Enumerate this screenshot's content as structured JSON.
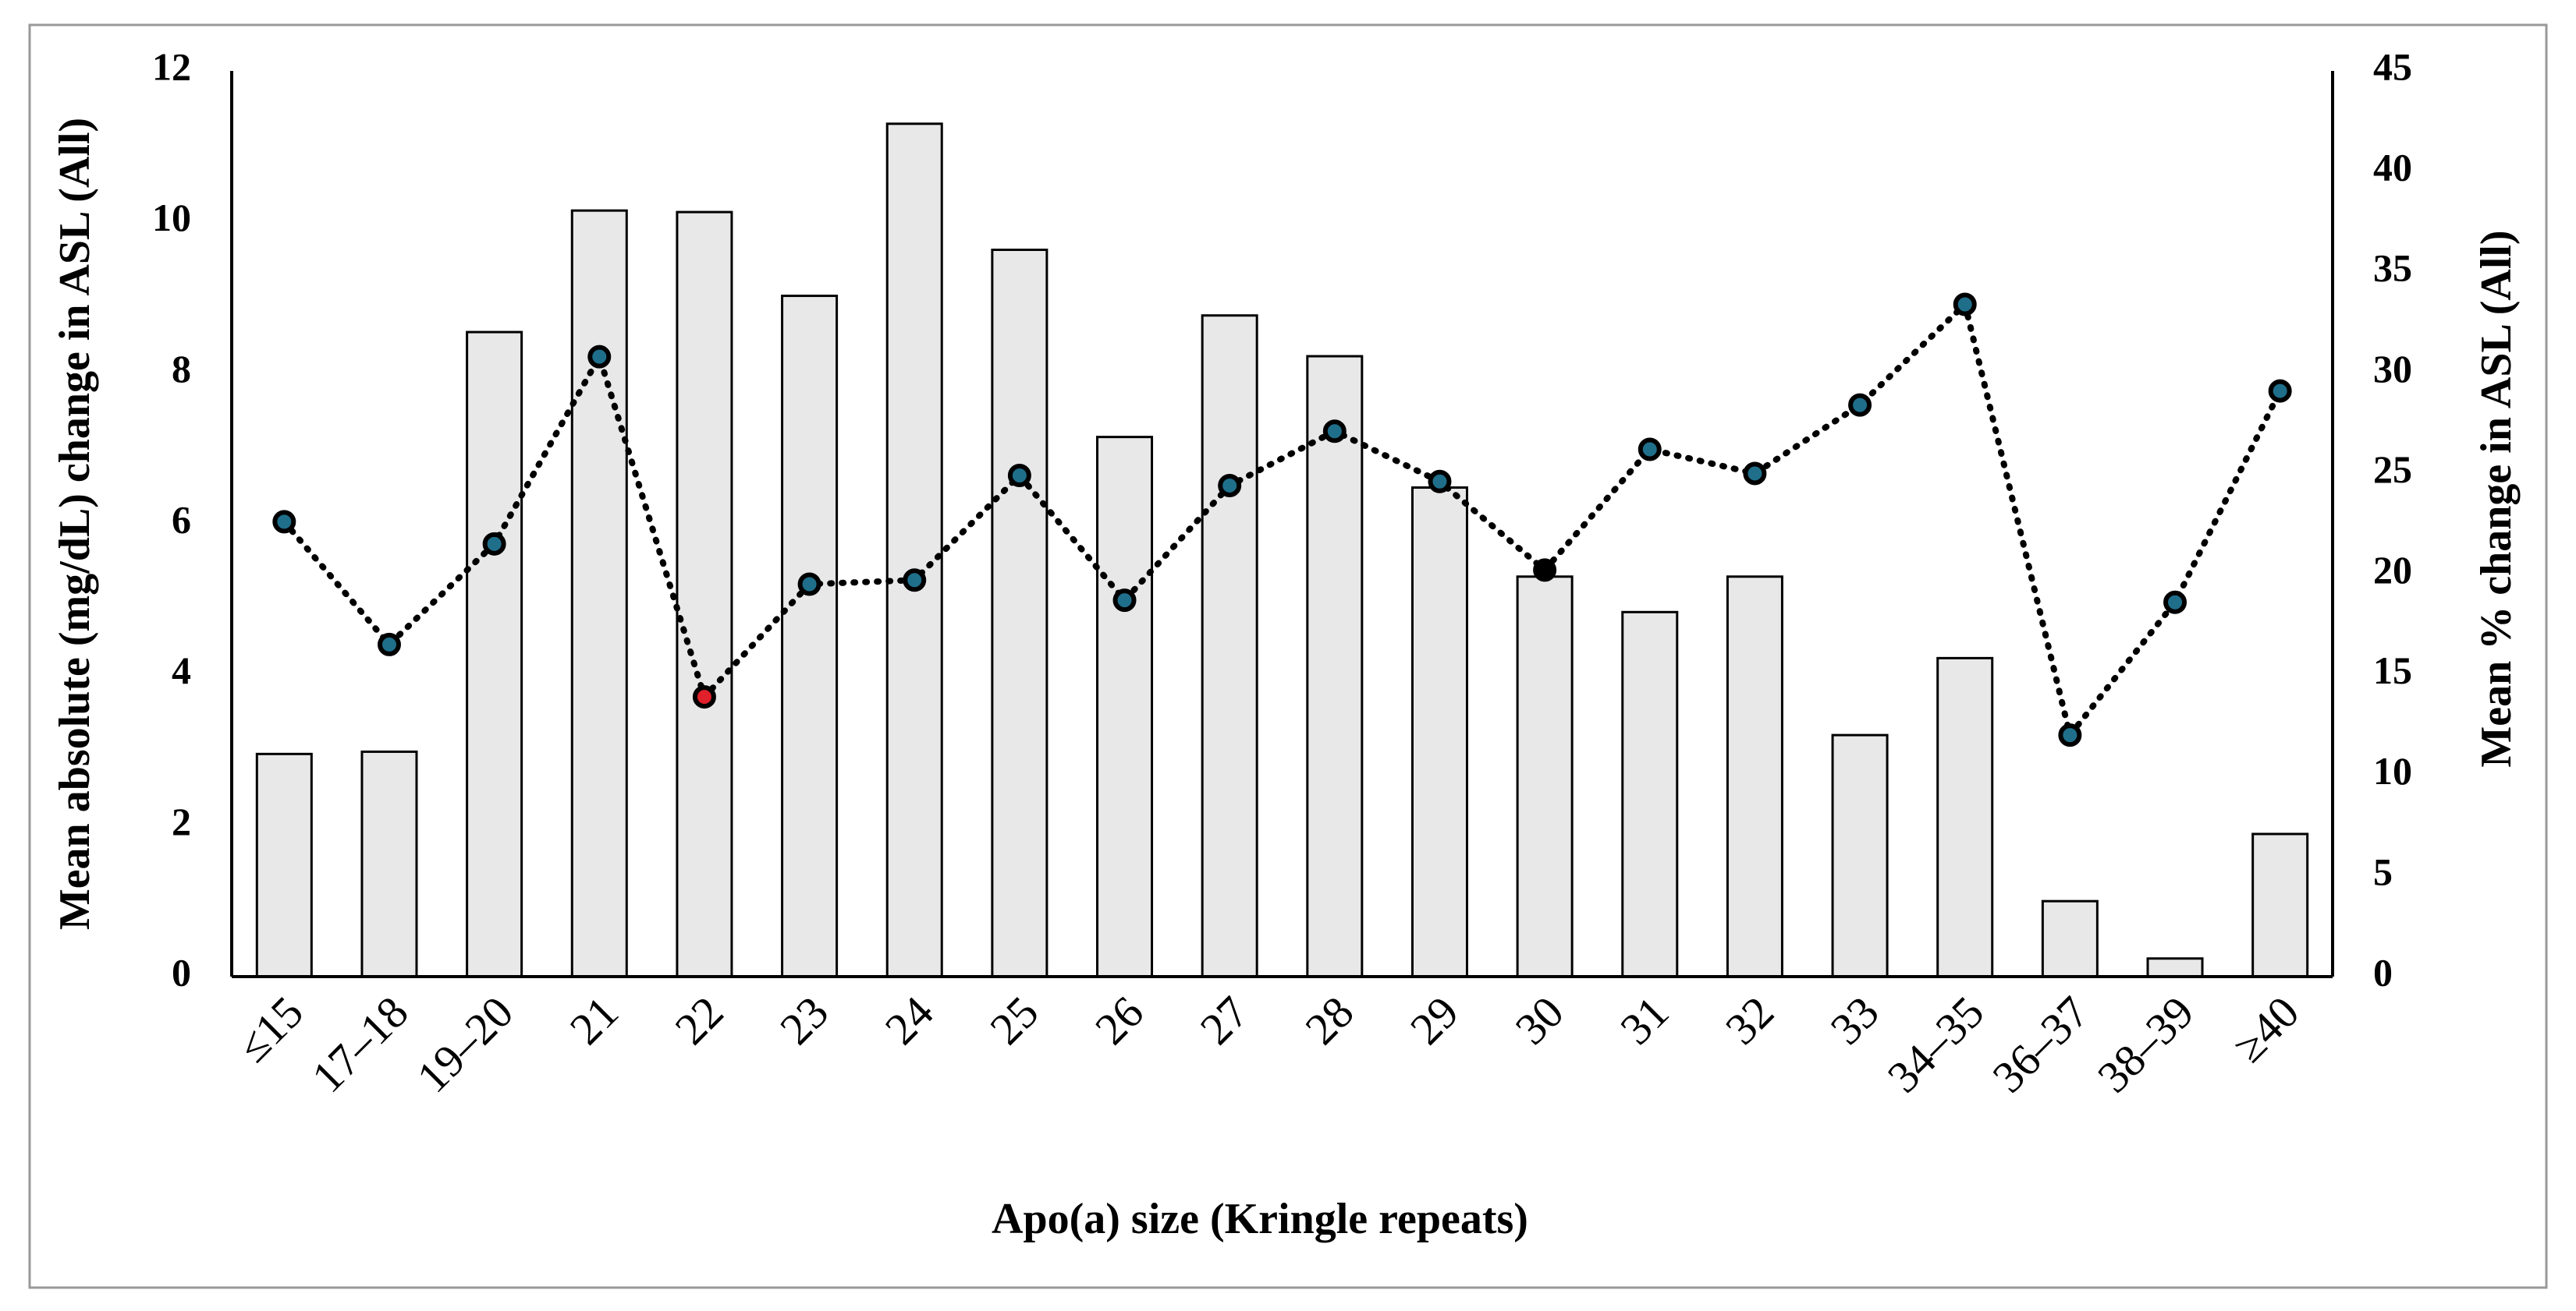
{
  "chart_data": {
    "type": "bar-line",
    "x_label": "Apo(a) size (Kringle repeats)",
    "y_label": "Mean absolute (mg/dL) change in ASL (All)",
    "y2_label": "Mean % change in ASL (All)",
    "categories": [
      "≤15",
      "17–18",
      "19–20",
      "21",
      "22",
      "23",
      "24",
      "25",
      "26",
      "27",
      "28",
      "29",
      "30",
      "31",
      "32",
      "33",
      "34–35",
      "36–37",
      "38–39",
      "≥40"
    ],
    "series": [
      {
        "type": "bar",
        "axis": "y",
        "color": "#e8e8e8",
        "values": [
          2.95,
          2.98,
          8.54,
          10.15,
          10.13,
          9.02,
          11.3,
          9.63,
          7.15,
          8.76,
          8.22,
          6.48,
          5.3,
          4.83,
          5.3,
          3.2,
          4.22,
          1.0,
          0.24,
          1.89
        ]
      },
      {
        "type": "line",
        "axis": "y2",
        "color": "#000000",
        "marker_colors": [
          "#1f6f8b",
          "#1f6f8b",
          "#1f6f8b",
          "#1f6f8b",
          "#e0202a",
          "#1f6f8b",
          "#1f6f8b",
          "#1f6f8b",
          "#1f6f8b",
          "#1f6f8b",
          "#1f6f8b",
          "#1f6f8b",
          "#000000",
          "#1f6f8b",
          "#1f6f8b",
          "#1f6f8b",
          "#1f6f8b",
          "#1f6f8b",
          "#1f6f8b",
          "#1f6f8b"
        ],
        "values": [
          22.6,
          16.5,
          21.5,
          30.8,
          13.9,
          19.5,
          19.7,
          24.9,
          18.7,
          24.4,
          27.1,
          24.6,
          20.2,
          26.2,
          25.0,
          28.4,
          33.4,
          12.0,
          18.6,
          29.1
        ]
      }
    ],
    "ylim": [
      0,
      12
    ],
    "yticks": [
      0,
      2,
      4,
      6,
      8,
      10,
      12
    ],
    "y2lim": [
      0,
      45
    ],
    "y2ticks": [
      0,
      5,
      10,
      15,
      20,
      25,
      30,
      35,
      40,
      45
    ],
    "grid": false
  }
}
